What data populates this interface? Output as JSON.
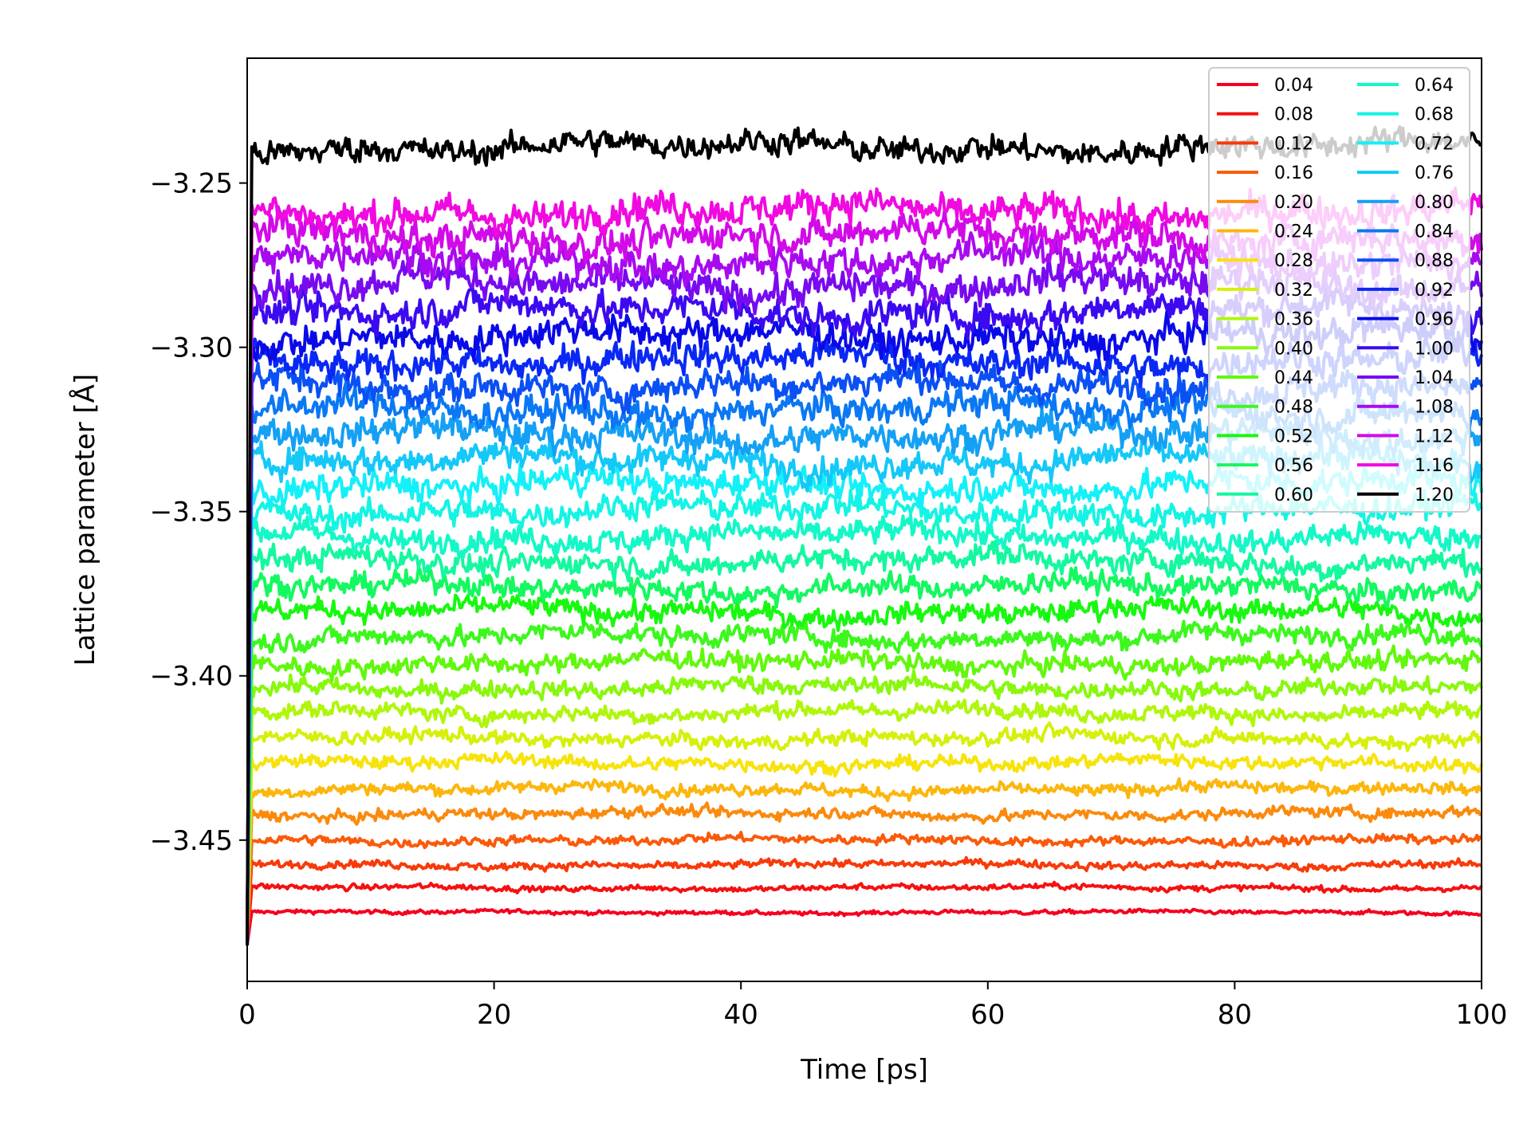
{
  "chart_data": {
    "type": "line",
    "title": "",
    "xlabel": "Time [ps]",
    "ylabel": "Lattice parameter [Å]",
    "xlim": [
      0,
      100
    ],
    "ylim": [
      -3.493,
      -3.212
    ],
    "xticks": [
      0,
      20,
      40,
      60,
      80,
      100
    ],
    "xtick_labels": [
      "0",
      "20",
      "40",
      "60",
      "80",
      "100"
    ],
    "yticks": [
      -3.25,
      -3.3,
      -3.35,
      -3.4,
      -3.45
    ],
    "ytick_labels": [
      "−3.25",
      "−3.30",
      "−3.35",
      "−3.40",
      "−3.45"
    ],
    "grid": false,
    "legend_position": "top-right",
    "legend_columns": 2,
    "start_value": -3.482,
    "series": [
      {
        "name": "0.04",
        "color": "#f5001f",
        "mean": -3.472,
        "noise": 0.0006
      },
      {
        "name": "0.08",
        "color": "#f51111",
        "mean": -3.4645,
        "noise": 0.0009
      },
      {
        "name": "0.12",
        "color": "#f83a0a",
        "mean": -3.4575,
        "noise": 0.0012
      },
      {
        "name": "0.16",
        "color": "#fa5a0a",
        "mean": -3.45,
        "noise": 0.0014
      },
      {
        "name": "0.20",
        "color": "#fb8a0c",
        "mean": -3.442,
        "noise": 0.0017
      },
      {
        "name": "0.24",
        "color": "#fcb60c",
        "mean": -3.4345,
        "noise": 0.0019
      },
      {
        "name": "0.28",
        "color": "#f7e30c",
        "mean": -3.4265,
        "noise": 0.0021
      },
      {
        "name": "0.32",
        "color": "#d6f00c",
        "mean": -3.419,
        "noise": 0.0023
      },
      {
        "name": "0.36",
        "color": "#b0f60c",
        "mean": -3.411,
        "noise": 0.0025
      },
      {
        "name": "0.40",
        "color": "#88f80c",
        "mean": -3.4035,
        "noise": 0.0027
      },
      {
        "name": "0.44",
        "color": "#60f80c",
        "mean": -3.396,
        "noise": 0.0029
      },
      {
        "name": "0.48",
        "color": "#3cf81c",
        "mean": -3.388,
        "noise": 0.0031
      },
      {
        "name": "0.52",
        "color": "#18f810",
        "mean": -3.3805,
        "noise": 0.0033
      },
      {
        "name": "0.56",
        "color": "#14f860",
        "mean": -3.373,
        "noise": 0.0035
      },
      {
        "name": "0.60",
        "color": "#14f8a0",
        "mean": -3.365,
        "noise": 0.0037
      },
      {
        "name": "0.64",
        "color": "#14f8c8",
        "mean": -3.3575,
        "noise": 0.0039
      },
      {
        "name": "0.68",
        "color": "#14f4e4",
        "mean": -3.3495,
        "noise": 0.0041
      },
      {
        "name": "0.72",
        "color": "#14f0f8",
        "mean": -3.342,
        "noise": 0.0043
      },
      {
        "name": "0.76",
        "color": "#14c8f8",
        "mean": -3.3345,
        "noise": 0.0044
      },
      {
        "name": "0.80",
        "color": "#14a0f4",
        "mean": -3.3265,
        "noise": 0.0045
      },
      {
        "name": "0.84",
        "color": "#0a78f4",
        "mean": -3.319,
        "noise": 0.0046
      },
      {
        "name": "0.88",
        "color": "#0a50f4",
        "mean": -3.3115,
        "noise": 0.0047
      },
      {
        "name": "0.92",
        "color": "#0a28f4",
        "mean": -3.304,
        "noise": 0.0048
      },
      {
        "name": "0.96",
        "color": "#0a0ae8",
        "mean": -3.2965,
        "noise": 0.0048
      },
      {
        "name": "1.00",
        "color": "#3c0af0",
        "mean": -3.289,
        "noise": 0.0049
      },
      {
        "name": "1.04",
        "color": "#780af0",
        "mean": -3.281,
        "noise": 0.0049
      },
      {
        "name": "1.08",
        "color": "#a80af0",
        "mean": -3.2735,
        "noise": 0.005
      },
      {
        "name": "1.12",
        "color": "#d20ae8",
        "mean": -3.266,
        "noise": 0.005
      },
      {
        "name": "1.16",
        "color": "#f00ae0",
        "mean": -3.2585,
        "noise": 0.005
      },
      {
        "name": "1.20",
        "color": "#000000",
        "mean": -3.239,
        "noise": 0.004
      }
    ]
  }
}
